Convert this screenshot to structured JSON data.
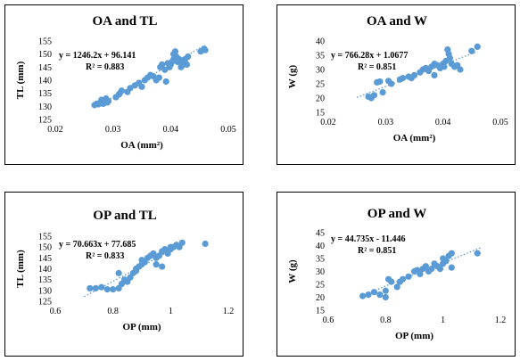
{
  "chart_data": [
    {
      "type": "scatter",
      "title": "OA and TL",
      "xlabel": "OA (mm²)",
      "ylabel": "TL (mm)",
      "xlim": [
        0.02,
        0.05
      ],
      "ylim": [
        125,
        155
      ],
      "xticks": [
        "0.02",
        "0.03",
        "0.04",
        "0.05"
      ],
      "yticks": [
        "125",
        "130",
        "135",
        "140",
        "145",
        "150",
        "155"
      ],
      "equation": "y = 1246.2x + 96.141",
      "r2": "R² = 0.883",
      "trend": {
        "slope": 1246.2,
        "intercept": 96.141,
        "x_range": [
          0.027,
          0.046
        ]
      },
      "color": "#5b9bd5",
      "points": [
        [
          0.0268,
          130.5
        ],
        [
          0.0272,
          131
        ],
        [
          0.0275,
          130.8
        ],
        [
          0.0278,
          131.5
        ],
        [
          0.028,
          132.5
        ],
        [
          0.0283,
          131
        ],
        [
          0.0285,
          132
        ],
        [
          0.0288,
          133
        ],
        [
          0.029,
          131.5
        ],
        [
          0.0292,
          132
        ],
        [
          0.0305,
          133.5
        ],
        [
          0.031,
          134.5
        ],
        [
          0.0312,
          135
        ],
        [
          0.0315,
          136
        ],
        [
          0.0325,
          135.5
        ],
        [
          0.033,
          137
        ],
        [
          0.0338,
          138
        ],
        [
          0.0345,
          139
        ],
        [
          0.035,
          137.5
        ],
        [
          0.0355,
          140
        ],
        [
          0.036,
          141
        ],
        [
          0.0365,
          142
        ],
        [
          0.037,
          141.5
        ],
        [
          0.0375,
          140
        ],
        [
          0.038,
          141
        ],
        [
          0.0382,
          145
        ],
        [
          0.0385,
          146
        ],
        [
          0.039,
          144
        ],
        [
          0.0392,
          139.5
        ],
        [
          0.0395,
          146.5
        ],
        [
          0.0398,
          145
        ],
        [
          0.04,
          146
        ],
        [
          0.0402,
          147
        ],
        [
          0.0405,
          148
        ],
        [
          0.0405,
          150
        ],
        [
          0.0408,
          151
        ],
        [
          0.041,
          149
        ],
        [
          0.0412,
          147
        ],
        [
          0.0415,
          148
        ],
        [
          0.0418,
          145
        ],
        [
          0.042,
          147
        ],
        [
          0.0422,
          146
        ],
        [
          0.0425,
          148
        ],
        [
          0.0428,
          146
        ],
        [
          0.043,
          149
        ],
        [
          0.0452,
          151
        ],
        [
          0.0458,
          152
        ],
        [
          0.046,
          151.5
        ]
      ]
    },
    {
      "type": "scatter",
      "title": "OA and W",
      "xlabel": "OA (mm²)",
      "ylabel": "W (g)",
      "xlim": [
        0.02,
        0.05
      ],
      "ylim": [
        15,
        40
      ],
      "xticks": [
        "0.02",
        "0.03",
        "0.04",
        "0.05"
      ],
      "yticks": [
        "15",
        "20",
        "25",
        "30",
        "35",
        "40"
      ],
      "equation": "y = 766.28x + 1.0677",
      "r2": "R² = 0.851",
      "trend": {
        "slope": 766.28,
        "intercept": 1.0677,
        "x_range": [
          0.025,
          0.046
        ]
      },
      "color": "#5b9bd5",
      "points": [
        [
          0.027,
          20.5
        ],
        [
          0.0275,
          20
        ],
        [
          0.028,
          21
        ],
        [
          0.0285,
          25.5
        ],
        [
          0.029,
          25.8
        ],
        [
          0.0295,
          22
        ],
        [
          0.0305,
          26
        ],
        [
          0.031,
          25
        ],
        [
          0.0325,
          26.5
        ],
        [
          0.033,
          27
        ],
        [
          0.034,
          27.5
        ],
        [
          0.0345,
          27
        ],
        [
          0.035,
          28
        ],
        [
          0.036,
          29
        ],
        [
          0.0365,
          30
        ],
        [
          0.037,
          30.5
        ],
        [
          0.0375,
          29.5
        ],
        [
          0.038,
          31
        ],
        [
          0.0385,
          32
        ],
        [
          0.039,
          31.5
        ],
        [
          0.0395,
          30.5
        ],
        [
          0.04,
          32
        ],
        [
          0.0402,
          31
        ],
        [
          0.0405,
          33
        ],
        [
          0.041,
          35.5
        ],
        [
          0.0412,
          34
        ],
        [
          0.0408,
          37
        ],
        [
          0.0415,
          32
        ],
        [
          0.042,
          31
        ],
        [
          0.0425,
          31.5
        ],
        [
          0.043,
          30
        ],
        [
          0.0385,
          28
        ],
        [
          0.045,
          36.5
        ],
        [
          0.046,
          38
        ]
      ]
    },
    {
      "type": "scatter",
      "title": "OP and TL",
      "xlabel": "OP (mm)",
      "ylabel": "TL (mm)",
      "xlim": [
        0.6,
        1.2
      ],
      "ylim": [
        125,
        155
      ],
      "xticks": [
        "0.6",
        "0.8",
        "1",
        "1.2"
      ],
      "yticks": [
        "125",
        "130",
        "135",
        "140",
        "145",
        "150",
        "155"
      ],
      "equation": "y = 70.663x + 77.685",
      "r2": "R² = 0.833",
      "trend": {
        "slope": 70.663,
        "intercept": 77.685,
        "x_range": [
          0.7,
          1.05
        ]
      },
      "color": "#5b9bd5",
      "points": [
        [
          0.72,
          131
        ],
        [
          0.74,
          131
        ],
        [
          0.76,
          131.5
        ],
        [
          0.78,
          130.5
        ],
        [
          0.8,
          130.5
        ],
        [
          0.82,
          131
        ],
        [
          0.83,
          133
        ],
        [
          0.84,
          135
        ],
        [
          0.85,
          134
        ],
        [
          0.86,
          136
        ],
        [
          0.87,
          138
        ],
        [
          0.88,
          139
        ],
        [
          0.88,
          140
        ],
        [
          0.89,
          141
        ],
        [
          0.9,
          142
        ],
        [
          0.9,
          144
        ],
        [
          0.91,
          143
        ],
        [
          0.92,
          145
        ],
        [
          0.93,
          146
        ],
        [
          0.94,
          147
        ],
        [
          0.95,
          145
        ],
        [
          0.96,
          146
        ],
        [
          0.97,
          148
        ],
        [
          0.98,
          149
        ],
        [
          0.99,
          148
        ],
        [
          1.0,
          150
        ],
        [
          1.0,
          149
        ],
        [
          1.01,
          150
        ],
        [
          1.02,
          151
        ],
        [
          1.03,
          150
        ],
        [
          1.04,
          152
        ],
        [
          0.97,
          141
        ],
        [
          0.95,
          142
        ],
        [
          0.99,
          147
        ],
        [
          1.12,
          151.5
        ],
        [
          0.82,
          138
        ]
      ]
    },
    {
      "type": "scatter",
      "title": "OP and W",
      "xlabel": "OP (mm)",
      "ylabel": "W (g)",
      "xlim": [
        0.6,
        1.2
      ],
      "ylim": [
        15,
        45
      ],
      "xticks": [
        "0.6",
        "0.8",
        "1",
        "1.2"
      ],
      "yticks": [
        "15",
        "20",
        "25",
        "30",
        "35",
        "40",
        "45"
      ],
      "equation": "y = 44.735x - 11.446",
      "r2": "R² = 0.851",
      "trend": {
        "slope": 44.735,
        "intercept": -11.446,
        "x_range": [
          0.72,
          1.13
        ]
      },
      "color": "#5b9bd5",
      "points": [
        [
          0.72,
          20.5
        ],
        [
          0.74,
          21
        ],
        [
          0.76,
          22
        ],
        [
          0.78,
          21
        ],
        [
          0.8,
          22.5
        ],
        [
          0.8,
          20
        ],
        [
          0.81,
          27
        ],
        [
          0.82,
          26
        ],
        [
          0.84,
          24
        ],
        [
          0.85,
          26
        ],
        [
          0.86,
          27
        ],
        [
          0.88,
          28
        ],
        [
          0.9,
          30
        ],
        [
          0.91,
          30.5
        ],
        [
          0.92,
          29
        ],
        [
          0.93,
          31
        ],
        [
          0.94,
          32
        ],
        [
          0.95,
          30
        ],
        [
          0.96,
          31
        ],
        [
          0.97,
          33
        ],
        [
          0.98,
          32
        ],
        [
          0.99,
          31
        ],
        [
          1.0,
          35
        ],
        [
          1.0,
          33
        ],
        [
          1.01,
          34
        ],
        [
          1.02,
          36
        ],
        [
          1.03,
          37
        ],
        [
          1.03,
          31.5
        ],
        [
          1.12,
          37
        ]
      ]
    }
  ]
}
